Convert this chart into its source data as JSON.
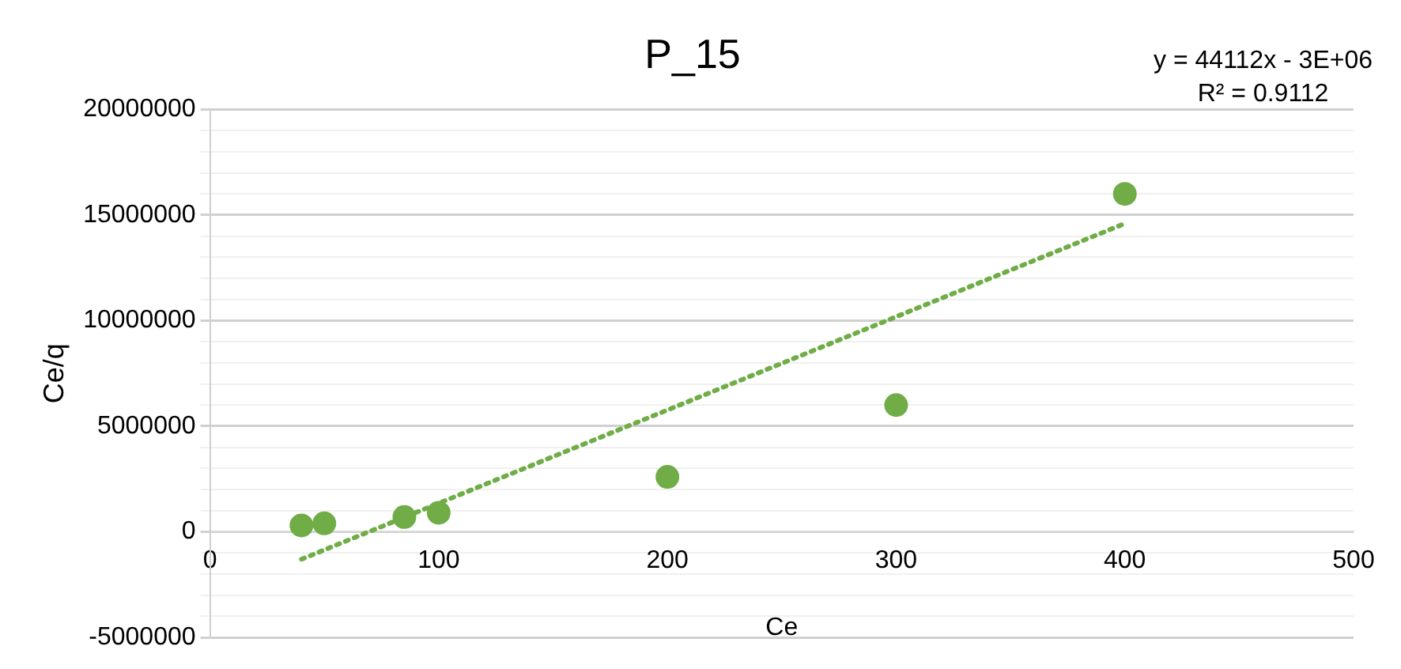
{
  "chart_data": {
    "type": "scatter",
    "title": "P_15",
    "xlabel": "Ce",
    "ylabel": "Ce/q",
    "xlim": [
      0,
      500
    ],
    "xticks": [
      0,
      100,
      200,
      300,
      400,
      500
    ],
    "ylim": [
      -5000000,
      20000000
    ],
    "yticks": [
      -5000000,
      {
        "value": -4000000,
        "label": null
      },
      {
        "value": -3000000,
        "label": null
      },
      {
        "value": -2000000,
        "label": null
      },
      {
        "value": -1000000,
        "label": null
      },
      0,
      {
        "value": 1000000,
        "label": null
      },
      {
        "value": 2000000,
        "label": null
      },
      {
        "value": 3000000,
        "label": null
      },
      {
        "value": 4000000,
        "label": null
      },
      5000000,
      {
        "value": 6000000,
        "label": null
      },
      {
        "value": 7000000,
        "label": null
      },
      {
        "value": 8000000,
        "label": null
      },
      {
        "value": 9000000,
        "label": null
      },
      10000000,
      {
        "value": 11000000,
        "label": null
      },
      {
        "value": 12000000,
        "label": null
      },
      {
        "value": 13000000,
        "label": null
      },
      {
        "value": 14000000,
        "label": null
      },
      15000000,
      {
        "value": 16000000,
        "label": null
      },
      {
        "value": 17000000,
        "label": null
      },
      {
        "value": 18000000,
        "label": null
      },
      {
        "value": 19000000,
        "label": null
      },
      20000000
    ],
    "grid": "y",
    "legend": false,
    "marker": "circle",
    "series": [
      {
        "color": "#70ad47",
        "x": [
          40,
          50,
          85,
          100,
          200,
          300,
          400
        ],
        "values": [
          300000,
          400000,
          700000,
          900000,
          2600000,
          6000000,
          16000000
        ]
      },
      {
        "type": "line",
        "color": "#70ad47",
        "line_style": "dotted",
        "marker": "none",
        "x": [
          40,
          400
        ],
        "values": [
          -1300000,
          14600000
        ]
      }
    ],
    "annotations": [
      "y = 44112x - 3E+06",
      "R² = 0.9112"
    ]
  }
}
